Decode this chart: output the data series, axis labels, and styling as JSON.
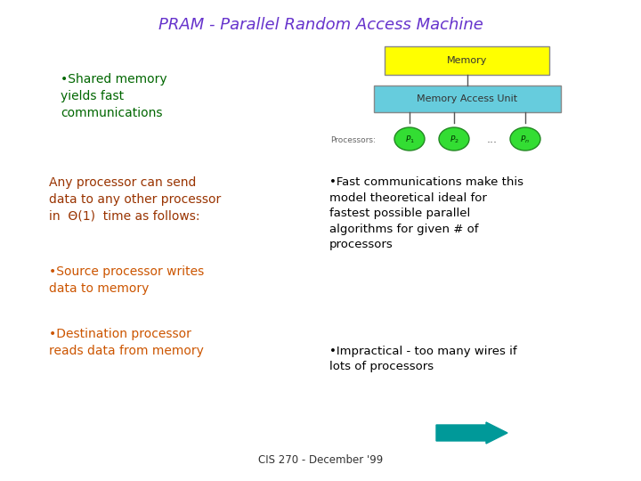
{
  "title": "PRAM - Parallel Random Access Machine",
  "title_color": "#6633cc",
  "title_fontsize": 13,
  "bg_color": "#ffffff",
  "bullet1_color": "#006600",
  "bullet1_text": "•Shared memory\nyields fast\ncommunications",
  "any_proc_color": "#993300",
  "any_proc_text": "Any processor can send\ndata to any other processor\nin  Θ(1)  time as follows:",
  "source_color": "#cc5500",
  "source_text": "•Source processor writes\ndata to memory",
  "dest_color": "#cc5500",
  "dest_text": "•Destination processor\nreads data from memory",
  "fast_comm_color": "#000000",
  "fast_comm_text": "•Fast communications make this\nmodel theoretical ideal for\nfastest possible parallel\nalgorithms for given # of\nprocessors",
  "impractical_color": "#000000",
  "impractical_text": "•Impractical - too many wires if\nlots of processors",
  "footer_text": "CIS 270 - December '99",
  "footer_color": "#333333",
  "memory_box_color": "#ffff00",
  "memory_box_text": "Memory",
  "mau_box_color": "#66ccdd",
  "mau_box_text": "Memory Access Unit",
  "processor_color": "#33dd33",
  "arrow_color": "#009999",
  "line_color": "#555555"
}
